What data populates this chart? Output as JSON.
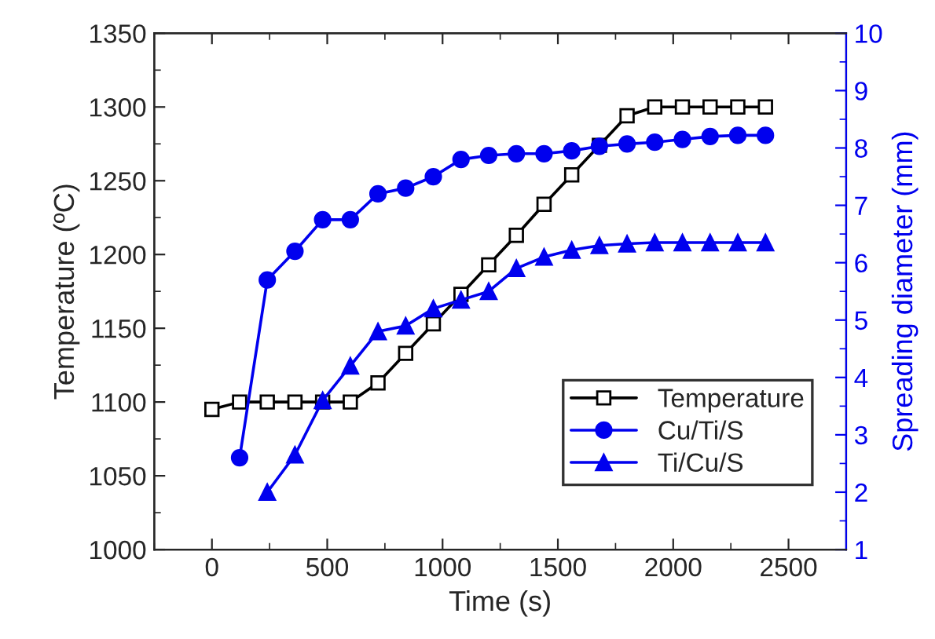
{
  "chart_data": {
    "type": "line",
    "xlabel": "Time (s)",
    "ylabel": "Temperature (ºC)",
    "y2label": "Spreading diameter (mm)",
    "xlim": [
      -250,
      2750
    ],
    "xticks": [
      0,
      500,
      1000,
      1500,
      2000,
      2500
    ],
    "ylim": [
      1000,
      1350
    ],
    "yticks": [
      1000,
      1050,
      1100,
      1150,
      1200,
      1250,
      1300,
      1350
    ],
    "y2lim": [
      1,
      10
    ],
    "y2ticks": [
      1,
      2,
      3,
      4,
      5,
      6,
      7,
      8,
      9,
      10
    ],
    "legend": "bottom right",
    "grid": false,
    "series": [
      {
        "name": "Temperature",
        "color": "#000000",
        "marker": "square",
        "x": [
          0,
          120,
          240,
          360,
          480,
          600,
          720,
          840,
          960,
          1080,
          1200,
          1320,
          1440,
          1560,
          1680,
          1800,
          1920,
          2040,
          2160,
          2280,
          2400
        ],
        "values": [
          1095,
          1100,
          1100,
          1100,
          1100,
          1100,
          1113,
          1133,
          1153,
          1173,
          1193,
          1213,
          1234,
          1254,
          1274,
          1294,
          1300,
          1300,
          1300,
          1300,
          1300
        ]
      },
      {
        "name": "Cu/Ti/S",
        "color": "#0000ee",
        "marker": "circle",
        "axis": "y2",
        "x": [
          120,
          240,
          360,
          480,
          600,
          720,
          840,
          960,
          1080,
          1200,
          1320,
          1440,
          1560,
          1680,
          1800,
          1920,
          2040,
          2160,
          2280,
          2400
        ],
        "values": [
          2.6,
          5.7,
          6.2,
          6.75,
          6.75,
          7.2,
          7.3,
          7.5,
          7.8,
          7.87,
          7.9,
          7.9,
          7.95,
          8.03,
          8.07,
          8.1,
          8.15,
          8.2,
          8.22,
          8.22
        ]
      },
      {
        "name": "Ti/Cu/S",
        "color": "#0000ee",
        "marker": "triangle",
        "axis": "y2",
        "x": [
          240,
          360,
          480,
          600,
          720,
          840,
          960,
          1080,
          1200,
          1320,
          1440,
          1560,
          1680,
          1800,
          1920,
          2040,
          2160,
          2280,
          2400
        ],
        "values": [
          2.0,
          2.65,
          3.6,
          4.2,
          4.8,
          4.9,
          5.2,
          5.35,
          5.5,
          5.9,
          6.1,
          6.22,
          6.3,
          6.33,
          6.35,
          6.35,
          6.35,
          6.35,
          6.35
        ]
      }
    ]
  }
}
